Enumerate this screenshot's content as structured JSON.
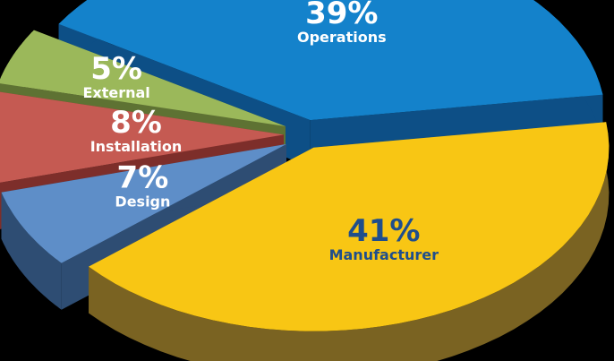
{
  "chart_data": {
    "type": "pie",
    "style": "exploded-3d",
    "slices": [
      {
        "label": "Manufacturer",
        "percent": "41%",
        "value": 41,
        "color": "#f8c614",
        "side_color": "#7a6322",
        "text_color": "#1f4e8c"
      },
      {
        "label": "Design",
        "percent": "7%",
        "value": 7,
        "color": "#5e8ec8",
        "side_color": "#2e4d73",
        "text_color": "#ffffff"
      },
      {
        "label": "Installation",
        "percent": "8%",
        "value": 8,
        "color": "#c55a52",
        "side_color": "#7d2e2a",
        "text_color": "#ffffff"
      },
      {
        "label": "External",
        "percent": "5%",
        "value": 5,
        "color": "#9bb85a",
        "side_color": "#5e7233",
        "text_color": "#ffffff"
      },
      {
        "label": "Operations",
        "percent": "39%",
        "value": 39,
        "color": "#1482cb",
        "side_color": "#0d4f86",
        "text_color": "#ffffff"
      }
    ]
  }
}
